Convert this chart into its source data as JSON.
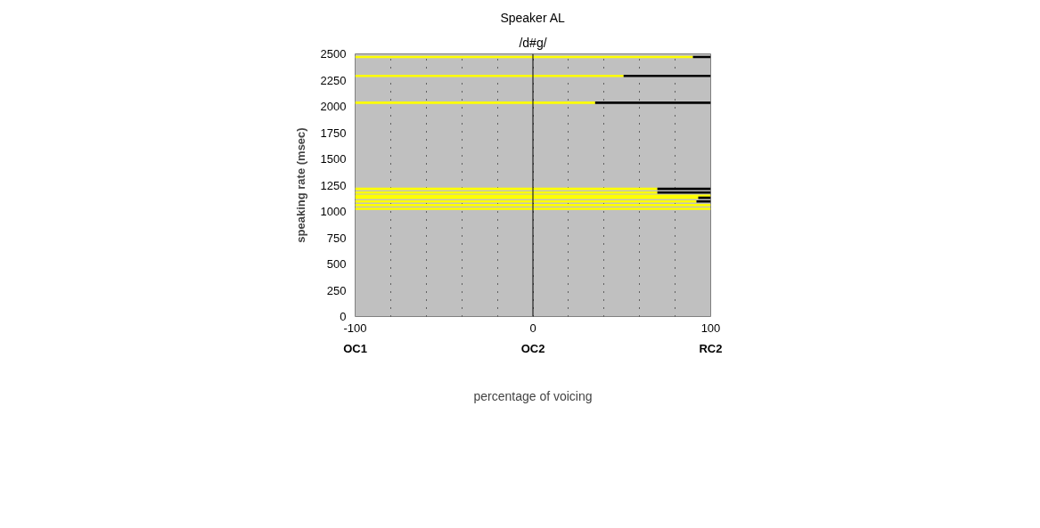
{
  "chart_data": {
    "type": "bar",
    "orientation": "horizontal",
    "title": "Speaker AL",
    "subtitle": "/d#g/",
    "xlabel": "percentage of voicing",
    "ylabel": "speaking rate (msec)",
    "x": [
      2470,
      2290,
      2035,
      1215,
      1180,
      1150,
      1130,
      1095,
      1060,
      1025
    ],
    "series": [
      {
        "color": "#ffff00",
        "base": [
          -100,
          -100,
          -100,
          -100,
          -100,
          -100,
          -100,
          -100,
          -100,
          -100
        ],
        "values": [
          190,
          151,
          135,
          170,
          170,
          200,
          193,
          192,
          200,
          200
        ]
      },
      {
        "color": "#000000",
        "base": [
          90,
          51,
          35,
          70,
          70,
          null,
          93,
          92,
          null,
          null
        ],
        "values": [
          10,
          49,
          65,
          30,
          30,
          null,
          7,
          8,
          null,
          null
        ]
      }
    ],
    "xlim": [
      -100,
      100
    ],
    "ylim": [
      0,
      2500
    ],
    "xticks": [
      -100,
      {
        "value": -80,
        "label": null
      },
      {
        "value": -60,
        "label": null
      },
      {
        "value": -40,
        "label": null
      },
      {
        "value": -20,
        "label": null
      },
      0,
      {
        "value": 20,
        "label": null
      },
      {
        "value": 40,
        "label": null
      },
      {
        "value": 60,
        "label": null
      },
      {
        "value": 80,
        "label": null
      },
      100
    ],
    "yticks": [
      0,
      250,
      500,
      750,
      1000,
      1250,
      1500,
      1750,
      2000,
      2250,
      2500
    ],
    "grid": "x",
    "ref_lines": [
      {
        "axis": "x",
        "value": 0,
        "color": "#000000"
      }
    ],
    "annotations": [
      "OC1",
      "OC2",
      "RC2"
    ]
  }
}
